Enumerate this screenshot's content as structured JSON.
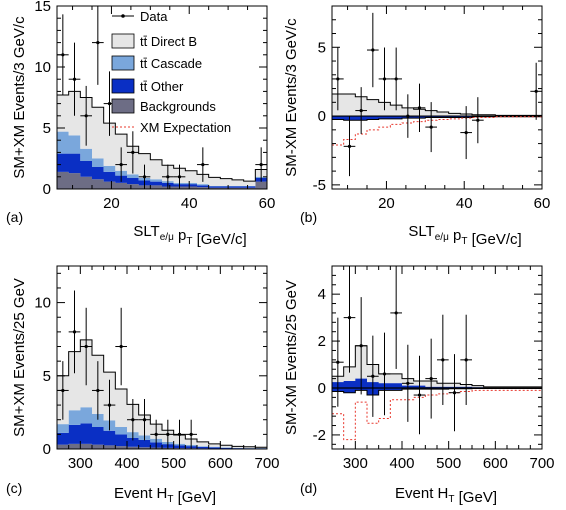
{
  "legend": [
    {
      "key": "data",
      "label": "Data",
      "symbol": "point"
    },
    {
      "key": "direct",
      "label": "tt̄ Direct B",
      "color": "#e6e6e6",
      "symbol": "box"
    },
    {
      "key": "cascade",
      "label": "tt̄ Cascade",
      "color": "#7aa7dc",
      "symbol": "box"
    },
    {
      "key": "other",
      "label": "tt̄ Other",
      "color": "#0a2fc4",
      "symbol": "box"
    },
    {
      "key": "bkg",
      "label": "Backgrounds",
      "color": "#6d6d85",
      "symbol": "box"
    },
    {
      "key": "xm",
      "label": "XM Expectation",
      "color": "#e8382e",
      "symbol": "dashed"
    }
  ],
  "colors": {
    "direct": "#e6e6e6",
    "cascade": "#7aa7dc",
    "other": "#0a2fc4",
    "bkg": "#6d6d85",
    "xm": "#e8382e",
    "outline": "#000000"
  },
  "chart_data": [
    {
      "panel": "(a)",
      "type": "area",
      "xlabel": "SLT_{e/μ} p_T [GeV/c]",
      "ylabel": "SM+XM Events/3 GeV/c",
      "xlim": [
        6,
        60
      ],
      "ylim": [
        0,
        15
      ],
      "xticks": [
        "20",
        "40",
        "60"
      ],
      "yticks": [
        "0",
        "5",
        "10",
        "15"
      ],
      "bin_edges": [
        6,
        9,
        12,
        15,
        18,
        21,
        24,
        27,
        30,
        33,
        36,
        39,
        42,
        45,
        48,
        51,
        54,
        57,
        60
      ],
      "stack": [
        {
          "key": "bkg",
          "values": [
            1.4,
            1.3,
            1.0,
            0.8,
            0.6,
            0.5,
            0.4,
            0.3,
            0.3,
            0.2,
            0.2,
            0.2,
            0.15,
            0.1,
            0.1,
            0.1,
            0.1,
            0.6
          ]
        },
        {
          "key": "other",
          "values": [
            1.5,
            1.6,
            1.3,
            1.0,
            0.8,
            0.6,
            0.5,
            0.4,
            0.3,
            0.3,
            0.2,
            0.2,
            0.15,
            0.1,
            0.1,
            0.1,
            0.1,
            0.3
          ]
        },
        {
          "key": "cascade",
          "values": [
            1.8,
            1.5,
            1.0,
            0.7,
            0.5,
            0.4,
            0.3,
            0.2,
            0.2,
            0.15,
            0.1,
            0.1,
            0.1,
            0.05,
            0.05,
            0.05,
            0.05,
            0.1
          ]
        },
        {
          "key": "direct",
          "values": [
            3.0,
            3.6,
            4.2,
            4.2,
            3.5,
            3.0,
            2.3,
            2.0,
            1.6,
            1.3,
            1.2,
            1.0,
            0.8,
            0.7,
            0.6,
            0.5,
            0.4,
            0.6
          ]
        }
      ],
      "data": {
        "x": [
          7.5,
          10.5,
          13.5,
          16.5,
          19.5,
          22.5,
          25.5,
          28.5,
          31.5,
          34.5,
          37.5,
          40.5,
          43.5,
          46.5,
          49.5,
          52.5,
          55.5,
          58.5
        ],
        "y": [
          11,
          9,
          6,
          12,
          7,
          2,
          3,
          1,
          0,
          1,
          1,
          0,
          2,
          0,
          0,
          0,
          0,
          2
        ]
      }
    },
    {
      "panel": "(b)",
      "type": "area",
      "xlabel": "SLT_{e/μ} p_T [GeV/c]",
      "ylabel": "SM-XM Events/3 GeV/c",
      "xlim": [
        6,
        60
      ],
      "ylim": [
        -5.3,
        8
      ],
      "xticks": [
        "20",
        "40",
        "60"
      ],
      "yticks": [
        "-5",
        "0",
        "5"
      ],
      "bin_edges": [
        6,
        9,
        12,
        15,
        18,
        21,
        24,
        27,
        30,
        33,
        36,
        39,
        42,
        45,
        48,
        51,
        54,
        57,
        60
      ],
      "pos_direct": [
        1.6,
        1.6,
        1.4,
        1.2,
        1.0,
        0.8,
        0.6,
        0.5,
        0.4,
        0.3,
        0.2,
        0.15,
        0.1,
        0.1,
        0.05,
        0.05,
        0.05,
        0.05
      ],
      "neg_band": [
        -0.25,
        -0.3,
        -0.3,
        -0.25,
        -0.2,
        -0.2,
        -0.15,
        -0.15,
        -0.1,
        -0.1,
        -0.1,
        -0.1,
        -0.05,
        -0.05,
        -0.05,
        -0.05,
        -0.05,
        -0.05
      ],
      "xm": [
        -2.1,
        -1.7,
        -1.3,
        -1.0,
        -0.8,
        -0.6,
        -0.5,
        -0.4,
        -0.3,
        -0.25,
        -0.2,
        -0.15,
        -0.1,
        -0.1,
        -0.05,
        -0.05,
        -0.05,
        -0.05
      ],
      "data": {
        "x": [
          7.5,
          10.5,
          13.5,
          16.5,
          19.5,
          22.5,
          25.5,
          28.5,
          31.5,
          34.5,
          37.5,
          40.5,
          43.5,
          46.5,
          49.5,
          52.5,
          55.5,
          58.5
        ],
        "y": [
          2.7,
          -2.2,
          0.4,
          4.8,
          2.7,
          2.7,
          0.0,
          0.6,
          -0.8,
          null,
          null,
          -1.2,
          -0.3,
          null,
          null,
          null,
          null,
          1.8
        ]
      }
    },
    {
      "panel": "(c)",
      "type": "area",
      "xlabel": "Event H_T [GeV]",
      "ylabel": "SM+XM Events/25 GeV",
      "xlim": [
        250,
        700
      ],
      "ylim": [
        0,
        12.5
      ],
      "xticks": [
        "300",
        "400",
        "500",
        "600",
        "700"
      ],
      "yticks": [
        "0",
        "5",
        "10"
      ],
      "bin_edges": [
        250,
        275,
        300,
        325,
        350,
        375,
        400,
        425,
        450,
        475,
        500,
        525,
        550,
        575,
        600,
        625,
        650,
        675,
        700
      ],
      "stack": [
        {
          "key": "bkg",
          "values": [
            0.3,
            0.35,
            0.35,
            0.3,
            0.25,
            0.2,
            0.15,
            0.12,
            0.1,
            0.08,
            0.06,
            0.05,
            0.04,
            0.03,
            0.03,
            0.02,
            0.02,
            0.02
          ]
        },
        {
          "key": "other",
          "values": [
            0.8,
            1.3,
            1.4,
            1.2,
            1.0,
            0.8,
            0.6,
            0.5,
            0.35,
            0.25,
            0.2,
            0.15,
            0.1,
            0.08,
            0.05,
            0.04,
            0.03,
            0.03
          ]
        },
        {
          "key": "cascade",
          "values": [
            0.6,
            1.0,
            1.1,
            0.9,
            0.7,
            0.5,
            0.4,
            0.3,
            0.25,
            0.15,
            0.1,
            0.08,
            0.05,
            0.04,
            0.03,
            0.02,
            0.02,
            0.02
          ]
        },
        {
          "key": "direct",
          "values": [
            3.3,
            4.0,
            4.6,
            4.0,
            3.3,
            2.6,
            1.9,
            1.4,
            1.0,
            0.8,
            0.6,
            0.4,
            0.3,
            0.2,
            0.15,
            0.1,
            0.08,
            0.05
          ]
        }
      ],
      "data": {
        "x": [
          262.5,
          287.5,
          312.5,
          337.5,
          362.5,
          387.5,
          412.5,
          437.5,
          462.5,
          487.5,
          512.5,
          537.5,
          562.5,
          587.5,
          612.5,
          637.5,
          662.5,
          687.5
        ],
        "y": [
          4,
          8,
          7,
          4,
          3,
          7,
          2,
          2,
          1,
          1,
          1,
          1,
          0,
          0,
          0,
          0,
          0,
          0
        ]
      }
    },
    {
      "panel": "(d)",
      "type": "area",
      "xlabel": "Event H_T [GeV]",
      "ylabel": "SM-XM Events/25 GeV",
      "xlim": [
        250,
        700
      ],
      "ylim": [
        -2.6,
        5.2
      ],
      "xticks": [
        "300",
        "400",
        "500",
        "600",
        "700"
      ],
      "yticks": [
        "-2",
        "0",
        "2",
        "4"
      ],
      "bin_edges": [
        250,
        275,
        300,
        325,
        350,
        375,
        400,
        425,
        450,
        475,
        500,
        525,
        550,
        575,
        600,
        625,
        650,
        675,
        700
      ],
      "pos_direct": [
        0.5,
        0.9,
        1.8,
        1.0,
        0.6,
        0.6,
        0.4,
        0.3,
        0.3,
        0.2,
        0.2,
        0.15,
        0.1,
        0.05,
        0.05,
        0.05,
        0.05,
        0.05
      ],
      "pos_band": [
        0.25,
        0.3,
        0.4,
        0.25,
        0.2,
        0.2,
        0.1,
        0.1,
        0.05,
        0.05,
        0.05,
        0.05,
        0.03,
        0.02,
        0.02,
        0.02,
        0.02,
        0.02
      ],
      "neg_band": [
        -0.15,
        -0.2,
        -0.1,
        -0.3,
        -0.1,
        -0.1,
        -0.05,
        -0.05,
        -0.05,
        -0.05,
        -0.03,
        -0.03,
        -0.02,
        -0.02,
        -0.02,
        -0.02,
        -0.02,
        -0.02
      ],
      "xm": [
        -1.1,
        -2.2,
        -0.6,
        -1.5,
        -1.3,
        -0.5,
        -0.5,
        -0.4,
        -0.3,
        -0.25,
        -0.2,
        -0.15,
        -0.1,
        -0.1,
        -0.1,
        -0.1,
        -0.1,
        -0.1
      ],
      "data": {
        "x": [
          262.5,
          287.5,
          312.5,
          337.5,
          362.5,
          387.5,
          412.5,
          437.5,
          462.5,
          487.5,
          512.5,
          537.5
        ],
        "y": [
          1.1,
          3.0,
          1.8,
          0.5,
          0.6,
          3.2,
          0.2,
          -0.3,
          0.4,
          1.2,
          -0.2,
          1.2
        ]
      }
    }
  ]
}
